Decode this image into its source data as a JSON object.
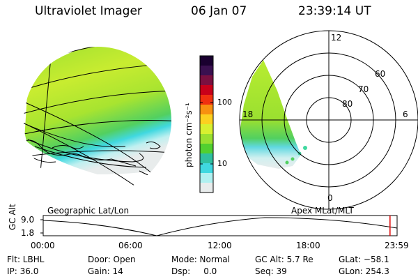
{
  "header": {
    "instrument": "Ultraviolet Imager",
    "date": "06 Jan 07",
    "time": "23:39:14 UT"
  },
  "colorbar": {
    "unit": "photon cm⁻²s⁻¹",
    "ticks": [
      "100",
      "10"
    ],
    "colors": [
      "#1a0030",
      "#3a1050",
      "#7a1040",
      "#c8001a",
      "#f03010",
      "#f89010",
      "#fcd020",
      "#d8f030",
      "#9ae030",
      "#52d030",
      "#30c0a0",
      "#40d8e0",
      "#b0f0f0",
      "#e8ecec"
    ]
  },
  "polar": {
    "hour_labels": {
      "top": "12",
      "left": "18",
      "right": "6",
      "bottom": "0"
    },
    "lat_labels": [
      "60",
      "70",
      "80"
    ]
  },
  "projections": {
    "left": "Geographic Lat/Lon",
    "right": "Apex MLat/MLT"
  },
  "timeline": {
    "y_label": "GC Alt",
    "y_ticks": [
      "9.0",
      "1.8"
    ],
    "x_ticks": [
      "00:00",
      "06:00",
      "12:00",
      "18:00",
      "23:59"
    ],
    "marker_fraction": 0.98
  },
  "status": {
    "filter": "Flt: LBHL",
    "ip": "IP: 36.0",
    "door": "Door: Open",
    "gain": "Gain: 14",
    "mode": "Mode: Normal",
    "dsp": "Dsp:     0.0",
    "gc_alt": "GC Alt: 5.7 Re",
    "seq": "Seq: 39",
    "glat": "GLat: −58.1",
    "glon": "GLon: 254.3"
  }
}
